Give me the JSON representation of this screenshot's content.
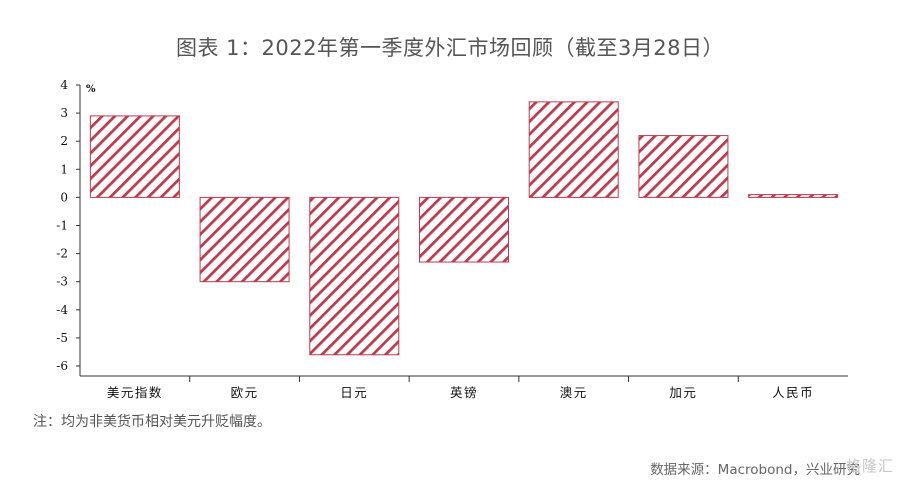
{
  "title": "图表 1：2022年第一季度外汇市场回顾（截至3月28日）",
  "note": "注：均为非美货币相对美元升贬幅度。",
  "source": "数据来源：Macrobond，兴业研究",
  "watermark": "格隆汇",
  "colors": {
    "bar_stroke": "#c0394b",
    "axis": "#333333"
  },
  "chart_data": {
    "type": "bar",
    "unit": "%",
    "categories": [
      "美元指数",
      "欧元",
      "日元",
      "英镑",
      "澳元",
      "加元",
      "人民币"
    ],
    "values": [
      2.9,
      -3.0,
      -5.6,
      -2.3,
      3.4,
      2.2,
      0.1
    ],
    "y_ticks": [
      4,
      3,
      2,
      1,
      0,
      -1,
      -2,
      -3,
      -4,
      -5,
      -6
    ],
    "ylim": [
      -6,
      4
    ],
    "grid": false,
    "pattern": "diagonal-stripes"
  }
}
